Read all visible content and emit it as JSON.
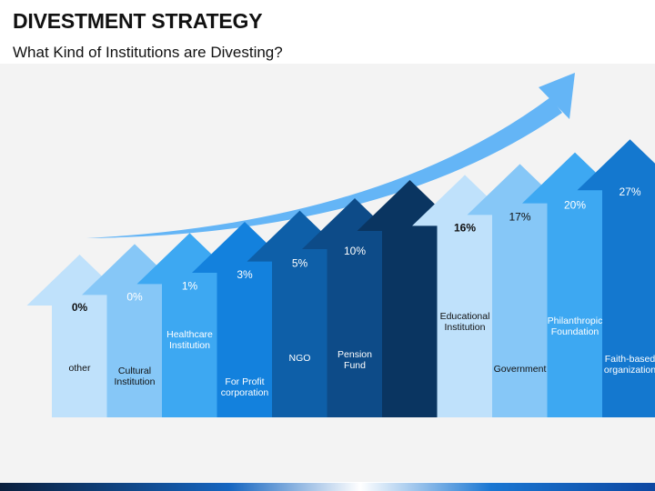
{
  "title": "DIVESTMENT STRATEGY",
  "subtitle": "What Kind of Institutions are Divesting?",
  "colors": {
    "background": "#f3f3f3",
    "trend_arrow": "#64b5f6",
    "bars": [
      "#bfe1fb",
      "#86c7f7",
      "#3da8f2",
      "#1381dd",
      "#0e5fa8",
      "#0d4b88",
      "#0a3561",
      "#bfe1fb",
      "#86c7f7",
      "#3da8f2",
      "#1478cf"
    ],
    "dark_text": "#111111",
    "light_text": "#ffffff"
  },
  "chart_data": {
    "type": "bar",
    "title": "What Kind of Institutions are Divesting?",
    "xlabel": "",
    "ylabel": "",
    "categories": [
      "other",
      "Cultural Institution",
      "Healthcare Institution",
      "For Profit corporation",
      "NGO",
      "Pension Fund",
      "Educational Institution",
      "Government",
      "Philanthropic Foundation",
      "Faith-based organization"
    ],
    "values": [
      0,
      0,
      1,
      3,
      5,
      10,
      16,
      17,
      20,
      27
    ],
    "value_labels": [
      "0%",
      "0%",
      "1%",
      "3%",
      "5%",
      "10%",
      "16%",
      "17%",
      "20%",
      "27%"
    ],
    "category_lines": [
      [
        "other"
      ],
      [
        "Cultural",
        "Institution"
      ],
      [
        "Healthcare",
        "Institution"
      ],
      [
        "For Profit",
        "corporation"
      ],
      [
        "NGO"
      ],
      [
        "Pension",
        "Fund"
      ],
      [
        "Educational",
        "Institution"
      ],
      [
        "Government"
      ],
      [
        "Philanthropic",
        "Foundation"
      ],
      [
        "Faith-based",
        "organization"
      ]
    ],
    "grid": false,
    "legend": "none"
  }
}
